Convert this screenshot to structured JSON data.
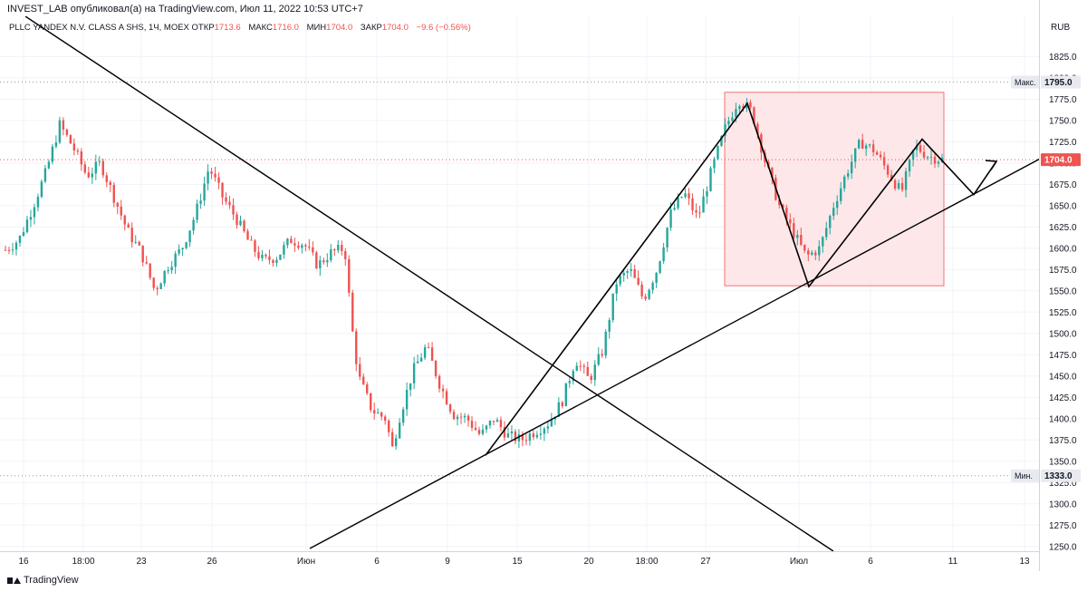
{
  "caption": "INVEST_LAB опубликовал(а) на TradingView.com, Июл 11, 2022 10:53 UTC+7",
  "legend": {
    "symbol": "PLLC YANDEX N.V. CLASS A SHS, 1Ч, MOEX",
    "open_label": "ОТКР",
    "open": "1713.6",
    "high_label": "МАКС",
    "high": "1716.0",
    "low_label": "МИН",
    "low": "1704.0",
    "close_label": "ЗАКР",
    "close": "1704.0",
    "change": "−9.6 (−0.56%)"
  },
  "footer": {
    "brand": "TradingView"
  },
  "colors": {
    "up": "#26a69a",
    "down": "#ef5350",
    "zone_fill": "#fde3e5",
    "zone_border": "#ef5350",
    "lines": "#000000"
  },
  "chart_data": {
    "type": "candlestick",
    "currency": "RUB",
    "y_ticks": [
      1825,
      1800,
      1775,
      1750,
      1725,
      1700,
      1675,
      1650,
      1625,
      1600,
      1575,
      1550,
      1525,
      1500,
      1475,
      1450,
      1425,
      1400,
      1375,
      1350,
      1325,
      1300,
      1275,
      1250
    ],
    "ylim": [
      1236,
      1838
    ],
    "x_ticks": [
      "16",
      "18:00",
      "23",
      "26",
      "Июн",
      "6",
      "9",
      "15",
      "20",
      "18:00",
      "27",
      "Июл",
      "6",
      "11",
      "13"
    ],
    "max_marker": {
      "label": "Макс.",
      "value": 1795.0,
      "text": "1795.0"
    },
    "min_marker": {
      "label": "Мин.",
      "value": 1333.0,
      "text": "1333.0"
    },
    "last_price": {
      "value": 1704.0,
      "text": "1704.0"
    },
    "close_path": [
      [
        0,
        1598
      ],
      [
        2,
        1610
      ],
      [
        4,
        1648
      ],
      [
        6,
        1690
      ],
      [
        8,
        1745
      ],
      [
        10,
        1718
      ],
      [
        12,
        1685
      ],
      [
        14,
        1700
      ],
      [
        16,
        1660
      ],
      [
        18,
        1620
      ],
      [
        20,
        1595
      ],
      [
        22,
        1550
      ],
      [
        24,
        1580
      ],
      [
        26,
        1600
      ],
      [
        28,
        1640
      ],
      [
        30,
        1695
      ],
      [
        32,
        1660
      ],
      [
        34,
        1635
      ],
      [
        36,
        1605
      ],
      [
        38,
        1585
      ],
      [
        40,
        1590
      ],
      [
        42,
        1610
      ],
      [
        44,
        1605
      ],
      [
        46,
        1580
      ],
      [
        48,
        1595
      ],
      [
        50,
        1600
      ],
      [
        51,
        1510
      ],
      [
        52,
        1450
      ],
      [
        54,
        1410
      ],
      [
        56,
        1400
      ],
      [
        57,
        1365
      ],
      [
        58,
        1400
      ],
      [
        60,
        1455
      ],
      [
        62,
        1485
      ],
      [
        64,
        1440
      ],
      [
        66,
        1405
      ],
      [
        68,
        1400
      ],
      [
        70,
        1380
      ],
      [
        72,
        1400
      ],
      [
        74,
        1380
      ],
      [
        76,
        1375
      ],
      [
        78,
        1385
      ],
      [
        80,
        1395
      ],
      [
        82,
        1420
      ],
      [
        84,
        1470
      ],
      [
        86,
        1445
      ],
      [
        88,
        1480
      ],
      [
        90,
        1560
      ],
      [
        92,
        1575
      ],
      [
        94,
        1540
      ],
      [
        96,
        1575
      ],
      [
        98,
        1640
      ],
      [
        100,
        1665
      ],
      [
        102,
        1635
      ],
      [
        104,
        1690
      ],
      [
        106,
        1740
      ],
      [
        108,
        1775
      ],
      [
        110,
        1760
      ],
      [
        112,
        1700
      ],
      [
        114,
        1650
      ],
      [
        116,
        1620
      ],
      [
        118,
        1590
      ],
      [
        120,
        1600
      ],
      [
        122,
        1650
      ],
      [
        124,
        1690
      ],
      [
        126,
        1725
      ],
      [
        128,
        1715
      ],
      [
        130,
        1690
      ],
      [
        132,
        1665
      ],
      [
        134,
        1720
      ],
      [
        136,
        1708
      ],
      [
        138,
        1704
      ]
    ],
    "trend_lines": [
      {
        "name": "",
        "points": [
          [
            "2022-05-12",
            1845
          ],
          [
            "2022-07-02",
            1245
          ]
        ]
      },
      {
        "name": "",
        "points": [
          [
            "2022-05-31",
            1245
          ],
          [
            "2022-07-15",
            1700
          ]
        ]
      }
    ],
    "zone": {
      "price_top": 1783,
      "price_bottom": 1556
    }
  }
}
